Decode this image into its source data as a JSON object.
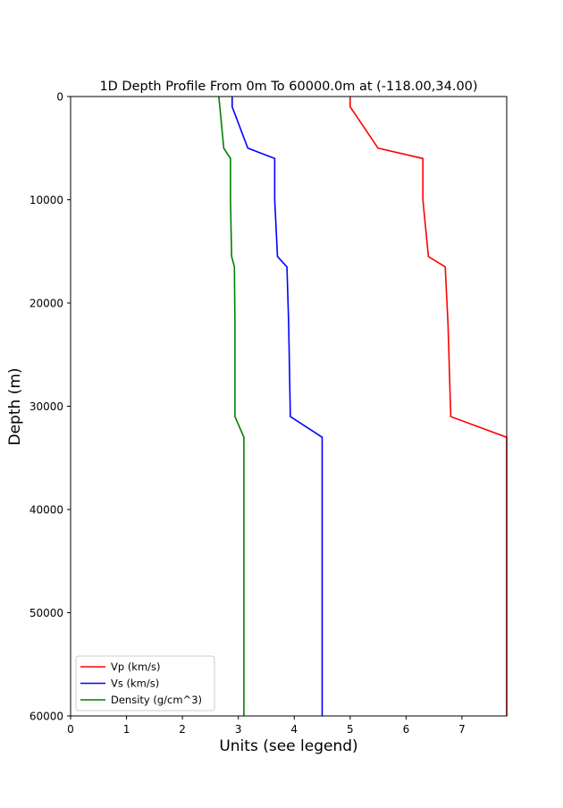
{
  "chart_data": {
    "type": "line",
    "title": "1D Depth Profile From 0m To 60000.0m at (-118.00,34.00)",
    "xlabel": "Units (see legend)",
    "ylabel": "Depth (m)",
    "xlim": [
      0,
      7.8
    ],
    "ylim": [
      60000,
      0
    ],
    "y_inverted": true,
    "grid": false,
    "legend_position": "lower-left",
    "xticks": [
      "0",
      "1",
      "2",
      "3",
      "4",
      "5",
      "6",
      "7"
    ],
    "yticks": [
      "0",
      "10000",
      "20000",
      "30000",
      "40000",
      "50000",
      "60000"
    ],
    "depth": [
      0,
      1000,
      5000,
      6000,
      10000,
      15500,
      16500,
      22000,
      31000,
      33000,
      60000
    ],
    "series": [
      {
        "name": "Vp (km/s)",
        "color": "#ff0000",
        "values": [
          5.0,
          5.0,
          5.5,
          6.3,
          6.3,
          6.4,
          6.7,
          6.75,
          6.8,
          7.8,
          7.8
        ]
      },
      {
        "name": "Vs (km/s)",
        "color": "#0000ff",
        "values": [
          2.89,
          2.89,
          3.17,
          3.65,
          3.65,
          3.7,
          3.87,
          3.9,
          3.93,
          4.5,
          4.5
        ]
      },
      {
        "name": "Density (g/cm^3)",
        "color": "#008000",
        "values": [
          2.65,
          2.67,
          2.74,
          2.86,
          2.86,
          2.88,
          2.93,
          2.94,
          2.94,
          3.1,
          3.1
        ]
      }
    ]
  }
}
